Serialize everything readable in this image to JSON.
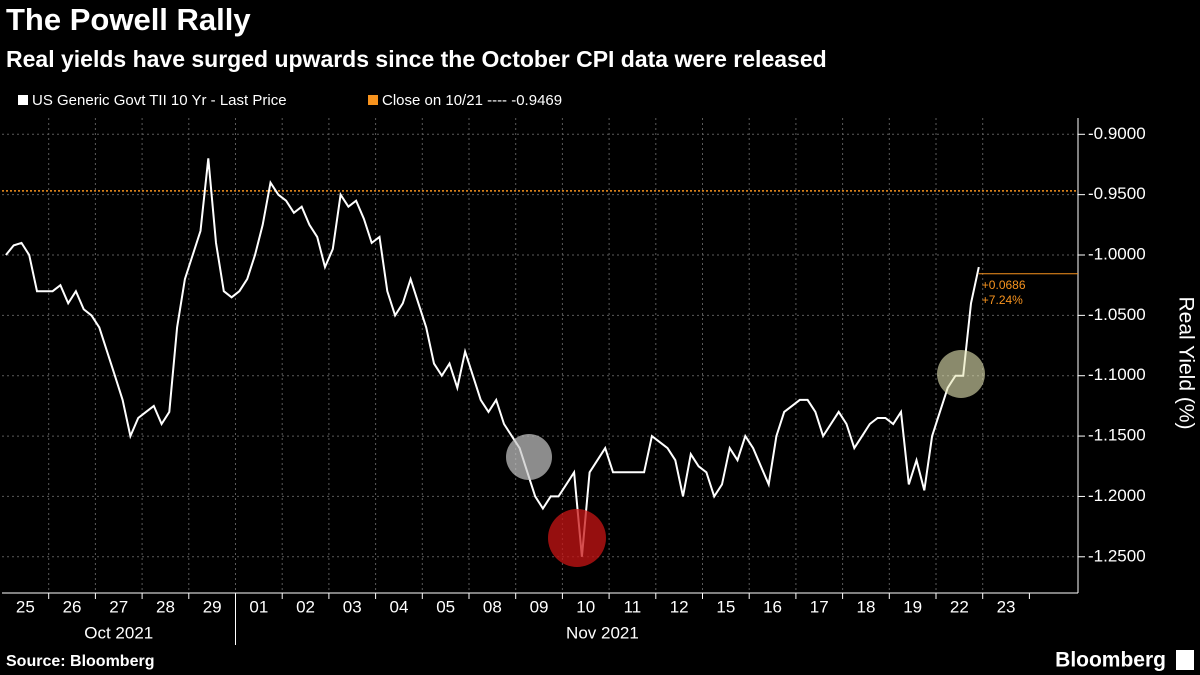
{
  "chart_data": {
    "type": "line",
    "title": "The Powell Rally",
    "subtitle": "Real yields have surged upwards since the October CPI data were released",
    "y_label": "Real Yield (%)",
    "source": "Source: Bloomberg",
    "brand": "Bloomberg",
    "x_groups": [
      {
        "name": "Oct 2021",
        "categories": [
          "25",
          "26",
          "27",
          "28",
          "29"
        ]
      },
      {
        "name": "Nov 2021",
        "categories": [
          "01",
          "02",
          "03",
          "04",
          "05",
          "08",
          "09",
          "10",
          "11",
          "12",
          "15",
          "16",
          "17",
          "18",
          "19",
          "22",
          "23"
        ]
      }
    ],
    "series": [
      {
        "name": "US Generic Govt TII 10 Yr - Last Price",
        "color": "#ffffff",
        "values": [
          [
            -1.0,
            -0.992,
            -0.99,
            -1.0,
            -1.03,
            -1.03
          ],
          [
            -1.03,
            -1.025,
            -1.04,
            -1.03,
            -1.045,
            -1.05
          ],
          [
            -1.06,
            -1.08,
            -1.1,
            -1.12,
            -1.15,
            -1.135
          ],
          [
            -1.13,
            -1.125,
            -1.14,
            -1.13,
            -1.06,
            -1.02
          ],
          [
            -1.0,
            -0.98,
            -0.92,
            -0.99,
            -1.03,
            -1.035
          ],
          [
            -1.03,
            -1.02,
            -1.0,
            -0.975,
            -0.94,
            -0.95
          ],
          [
            -0.955,
            -0.965,
            -0.96,
            -0.975,
            -0.985,
            -1.01
          ],
          [
            -0.995,
            -0.95,
            -0.96,
            -0.955,
            -0.97,
            -0.99
          ],
          [
            -0.985,
            -1.03,
            -1.05,
            -1.04,
            -1.02,
            -1.04
          ],
          [
            -1.06,
            -1.09,
            -1.1,
            -1.09,
            -1.11,
            -1.08
          ],
          [
            -1.1,
            -1.12,
            -1.13,
            -1.12,
            -1.14,
            -1.15
          ],
          [
            -1.16,
            -1.18,
            -1.2,
            -1.21,
            -1.2,
            -1.2
          ],
          [
            -1.19,
            -1.18,
            -1.25,
            -1.18,
            -1.17,
            -1.16
          ],
          [
            -1.18,
            -1.18,
            -1.18,
            -1.18,
            -1.18,
            -1.15
          ],
          [
            -1.155,
            -1.16,
            -1.17,
            -1.2,
            -1.165,
            -1.175
          ],
          [
            -1.18,
            -1.2,
            -1.19,
            -1.16,
            -1.17,
            -1.15
          ],
          [
            -1.16,
            -1.175,
            -1.19,
            -1.15,
            -1.13,
            -1.125
          ],
          [
            -1.12,
            -1.12,
            -1.13,
            -1.15,
            -1.14,
            -1.13
          ],
          [
            -1.14,
            -1.16,
            -1.15,
            -1.14,
            -1.135,
            -1.135
          ],
          [
            -1.14,
            -1.13,
            -1.19,
            -1.17,
            -1.195,
            -1.15
          ],
          [
            -1.13,
            -1.11,
            -1.1,
            -1.1,
            -1.04,
            -1.01
          ],
          []
        ]
      }
    ],
    "reference_line": {
      "label": "Close on 10/21 ---- -0.9469",
      "value": -0.9469,
      "color": "#f7931e"
    },
    "last_price": -1.0155,
    "change_labels": [
      "+0.0686",
      "+7.24%"
    ],
    "ylim": [
      -1.28,
      -0.8865
    ],
    "yticks": [
      {
        "value": -0.9,
        "label": "-0.9000"
      },
      {
        "value": -0.95,
        "label": "-0.9500"
      },
      {
        "value": -1.0,
        "label": "-1.0000"
      },
      {
        "value": -1.05,
        "label": "-1.0500"
      },
      {
        "value": -1.1,
        "label": "-1.1000"
      },
      {
        "value": -1.15,
        "label": "-1.1500"
      },
      {
        "value": -1.2,
        "label": "-1.2000"
      },
      {
        "value": -1.25,
        "label": "-1.2500"
      }
    ],
    "grid": true
  }
}
